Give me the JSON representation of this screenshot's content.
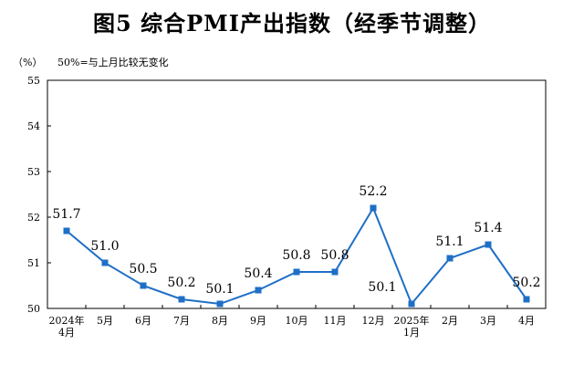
{
  "chart_data": {
    "type": "line",
    "title": "图5  综合PMI产出指数（经季节调整）",
    "unit_label": "（%）",
    "note": "50%=与上月比较无变化",
    "x": [
      [
        "2024年",
        "4月"
      ],
      [
        "5月"
      ],
      [
        "6月"
      ],
      [
        "7月"
      ],
      [
        "8月"
      ],
      [
        "9月"
      ],
      [
        "10月"
      ],
      [
        "11月"
      ],
      [
        "12月"
      ],
      [
        "2025年",
        "1月"
      ],
      [
        "2月"
      ],
      [
        "3月"
      ],
      [
        "4月"
      ]
    ],
    "series": [
      {
        "values": [
          51.7,
          51.0,
          50.5,
          50.2,
          50.1,
          50.4,
          50.8,
          50.8,
          52.2,
          50.1,
          51.1,
          51.4,
          50.2
        ]
      }
    ],
    "data_labels": [
      "51.7",
      "51.0",
      "50.5",
      "50.2",
      "50.1",
      "50.4",
      "50.8",
      "50.8",
      "52.2",
      "50.1",
      "51.1",
      "51.4",
      "50.2"
    ],
    "yticks": [
      50,
      51,
      52,
      53,
      54,
      55
    ],
    "ylim": [
      50,
      55
    ],
    "grid": false,
    "legend": "none",
    "colors": {
      "line": "#1f6fc6",
      "axis": "#000000"
    }
  }
}
